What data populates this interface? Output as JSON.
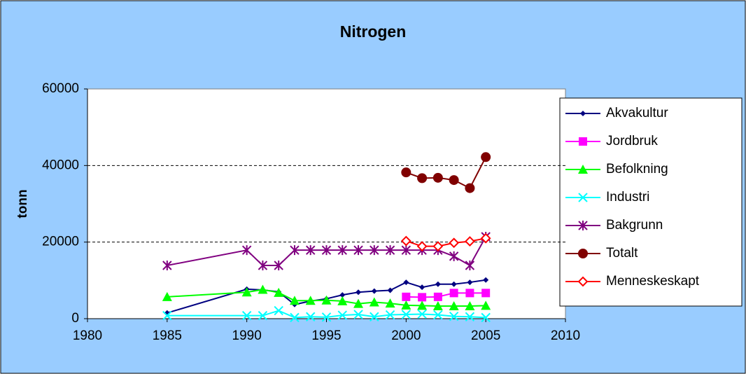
{
  "chart_data": {
    "type": "line",
    "title": "Nitrogen",
    "y_label": "tonn",
    "x": [
      1985,
      1990,
      1991,
      1992,
      1993,
      1994,
      1995,
      1996,
      1997,
      1998,
      1999,
      2000,
      2001,
      2002,
      2003,
      2004,
      2005
    ],
    "series": [
      {
        "name": "Akvakultur",
        "color": "#000080",
        "marker": "diamond",
        "values": [
          1500,
          7700,
          7500,
          7000,
          3700,
          4600,
          5200,
          6200,
          6900,
          7200,
          7400,
          9500,
          8200,
          9000,
          9000,
          9500,
          10100
        ]
      },
      {
        "name": "Jordbruk",
        "color": "#ff00ff",
        "marker": "square",
        "values": [
          null,
          null,
          null,
          null,
          null,
          null,
          null,
          null,
          null,
          null,
          null,
          5700,
          5600,
          5700,
          6700,
          6700,
          6700
        ]
      },
      {
        "name": "Befolkning",
        "color": "#00ff00",
        "marker": "triangle",
        "values": [
          5700,
          6900,
          7600,
          6800,
          4700,
          4700,
          4800,
          4600,
          3900,
          4300,
          4000,
          3500,
          3400,
          3300,
          3300,
          3300,
          3400
        ]
      },
      {
        "name": "Industri",
        "color": "#00ffff",
        "marker": "x",
        "values": [
          800,
          800,
          800,
          2100,
          300,
          500,
          400,
          900,
          1100,
          500,
          1000,
          1100,
          1200,
          1000,
          600,
          500,
          300
        ]
      },
      {
        "name": "Bakgrunn",
        "color": "#800080",
        "marker": "star",
        "values": [
          13900,
          17900,
          13900,
          13900,
          17900,
          17900,
          17900,
          17900,
          17900,
          17900,
          17900,
          17900,
          17900,
          17900,
          16300,
          13900,
          21400
        ]
      },
      {
        "name": "Totalt",
        "color": "#800000",
        "marker": "circle",
        "values": [
          null,
          null,
          null,
          null,
          null,
          null,
          null,
          null,
          null,
          null,
          null,
          38200,
          36700,
          36800,
          36200,
          34100,
          42200
        ]
      },
      {
        "name": "Menneskeskapt",
        "color": "#ff0000",
        "marker": "open-diamond",
        "values": [
          null,
          null,
          null,
          null,
          null,
          null,
          null,
          null,
          null,
          null,
          null,
          20300,
          18900,
          18900,
          19800,
          20200,
          21000
        ]
      }
    ],
    "xlim": [
      1980,
      2010
    ],
    "xticks": [
      1980,
      1985,
      1990,
      1995,
      2000,
      2005,
      2010
    ],
    "ylim": [
      0,
      60000
    ],
    "yticks": [
      0,
      20000,
      40000,
      60000
    ],
    "grid": true,
    "legend": "right"
  }
}
